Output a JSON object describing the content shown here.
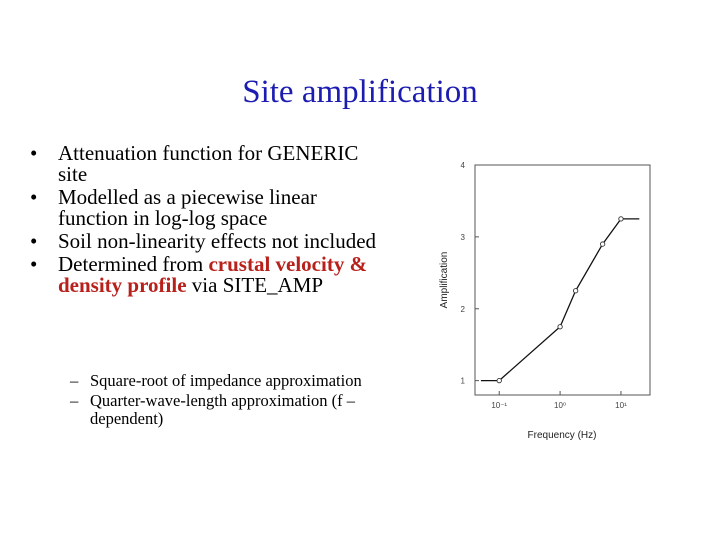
{
  "slide": {
    "title": "Site amplification",
    "bullets": [
      {
        "marker": "•",
        "text": "Attenuation function for GENERIC site"
      },
      {
        "marker": "•",
        "text": "Modelled as a piecewise linear function in log-log space"
      },
      {
        "marker": "•",
        "text": "Soil non-linearity effects not included"
      },
      {
        "marker": "•",
        "pre": "Determined from ",
        "highlight": "crustal velocity & density profile",
        "post": " via SITE_AMP"
      }
    ],
    "sub_bullets": [
      {
        "marker": "–",
        "text": " Square-root of impedance approximation"
      },
      {
        "marker": "–",
        "text": "Quarter-wave-length approximation (f – dependent)"
      }
    ],
    "colors": {
      "title": "#1c1cb0",
      "highlight": "#b8211b"
    }
  },
  "chart_data": {
    "type": "line",
    "x_scale": "log",
    "y_scale": "linear",
    "xlim": [
      0.04,
      30
    ],
    "ylim": [
      0.8,
      4
    ],
    "xlabel": "Frequency (Hz)",
    "ylabel": "Amplification",
    "x_ticks": [
      0.1,
      1,
      10
    ],
    "x_tick_labels": [
      "10⁻¹",
      "10⁰",
      "10¹"
    ],
    "y_ticks": [
      1,
      2,
      3,
      4
    ],
    "y_tick_labels": [
      "1",
      "2",
      "3",
      "4"
    ],
    "series": [
      {
        "x": [
          0.05,
          0.1,
          1.0,
          1.8,
          5.0,
          10.0,
          20.0
        ],
        "y": [
          1.0,
          1.0,
          1.75,
          2.25,
          2.9,
          3.25,
          3.25
        ],
        "markers": [
          false,
          true,
          true,
          true,
          true,
          true,
          false
        ]
      }
    ],
    "grid": false,
    "legend": "none"
  }
}
